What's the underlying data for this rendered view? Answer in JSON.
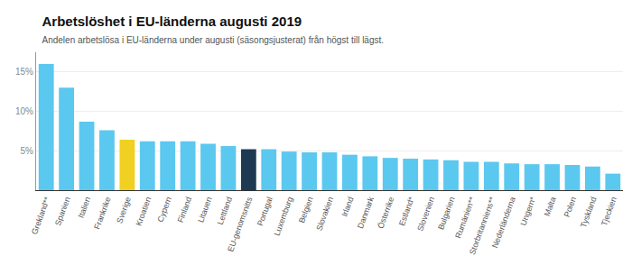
{
  "chart_data": {
    "type": "bar",
    "title": "Arbetslöshet i EU-länderna augusti 2019",
    "subtitle": "Andelen arbetslösa i EU-länderna under augusti (säsongsjusterat) från högst till lägst.",
    "categories": [
      "Grekland**",
      "Spanien",
      "Italien",
      "Frankrike",
      "Sverige",
      "Kroatien",
      "Cypern",
      "Finland",
      "Litauen",
      "Lettland",
      "EU-genomsnitts",
      "Portugal",
      "Luxemburg",
      "Belgien",
      "Slovakien",
      "Irland",
      "Danmark",
      "Österrike",
      "Estland*",
      "Slovenien",
      "Bulgarien",
      "Rumänien**",
      "Storbritan­niens**",
      "Nederländerna",
      "Ungern*",
      "Malta",
      "Polen",
      "Tyskland",
      "Tjeckien"
    ],
    "values": [
      16.0,
      13.0,
      8.7,
      7.6,
      6.4,
      6.2,
      6.2,
      6.2,
      5.9,
      5.6,
      5.2,
      5.2,
      4.9,
      4.8,
      4.8,
      4.5,
      4.3,
      4.1,
      4.0,
      3.9,
      3.8,
      3.6,
      3.6,
      3.4,
      3.3,
      3.3,
      3.2,
      3.0,
      2.1
    ],
    "colors": [
      "#5bc8f0",
      "#5bc8f0",
      "#5bc8f0",
      "#5bc8f0",
      "#f0d020",
      "#5bc8f0",
      "#5bc8f0",
      "#5bc8f0",
      "#5bc8f0",
      "#5bc8f0",
      "#1e3a52",
      "#5bc8f0",
      "#5bc8f0",
      "#5bc8f0",
      "#5bc8f0",
      "#5bc8f0",
      "#5bc8f0",
      "#5bc8f0",
      "#5bc8f0",
      "#5bc8f0",
      "#5bc8f0",
      "#5bc8f0",
      "#5bc8f0",
      "#5bc8f0",
      "#5bc8f0",
      "#5bc8f0",
      "#5bc8f0",
      "#5bc8f0",
      "#5bc8f0"
    ],
    "ylim": [
      0,
      17.5
    ],
    "yticks": [
      {
        "value": 5,
        "label": "5%"
      },
      {
        "value": 10,
        "label": "10%"
      },
      {
        "value": 15,
        "label": "15%"
      }
    ],
    "grid": true
  }
}
